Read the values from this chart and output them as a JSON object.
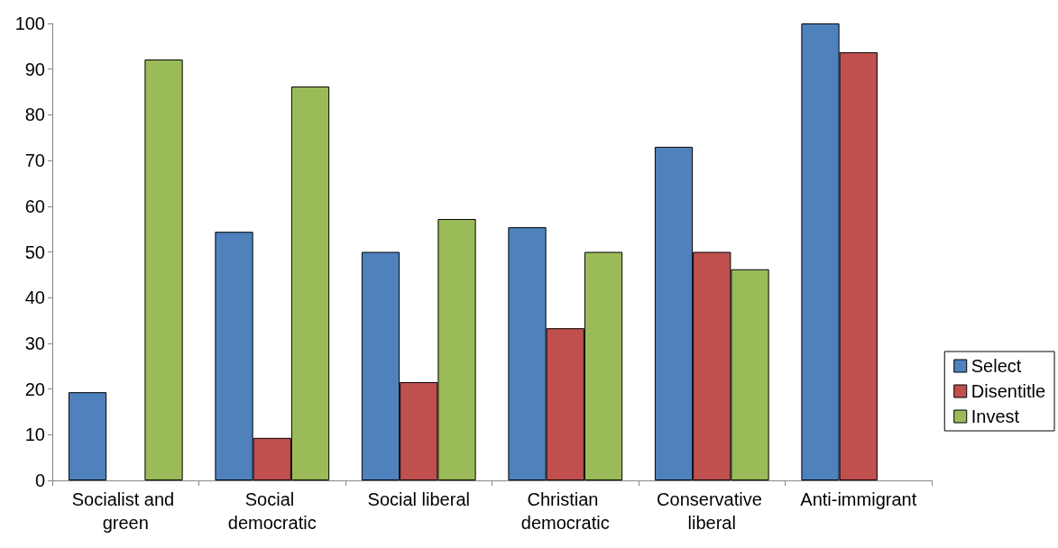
{
  "chart_data": {
    "type": "bar",
    "categories": [
      "Socialist and green",
      "Social democratic",
      "Social liberal",
      "Christian democratic",
      "Conservative liberal",
      "Anti-immigrant"
    ],
    "series": [
      {
        "name": "Select",
        "color": "#4f81bd",
        "values": [
          19.3,
          54.4,
          50,
          55.4,
          73,
          100
        ]
      },
      {
        "name": "Disentitle",
        "color": "#c0504d",
        "values": [
          null,
          9.3,
          21.5,
          33.3,
          50,
          93.7
        ]
      },
      {
        "name": "Invest",
        "color": "#9bbb59",
        "values": [
          92.1,
          86.2,
          57.2,
          50,
          46.2,
          null
        ]
      }
    ],
    "ylim": [
      0,
      100
    ],
    "yticks": [
      0,
      10,
      20,
      30,
      40,
      50,
      60,
      70,
      80,
      90,
      100
    ],
    "grid": false,
    "legend": "bottom right"
  }
}
